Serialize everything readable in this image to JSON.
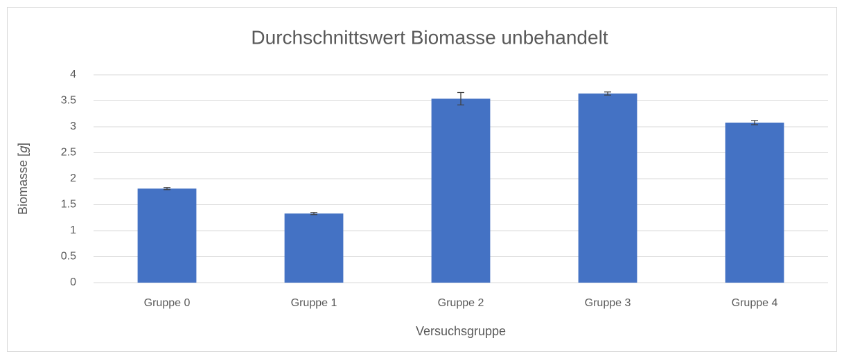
{
  "chart_data": {
    "type": "bar",
    "title": "Durchschnittswert Biomasse unbehandelt",
    "xlabel": "Versuchsgruppe",
    "ylabel": "Biomasse [𝑔]",
    "categories": [
      "Gruppe 0",
      "Gruppe 1",
      "Gruppe 2",
      "Gruppe 3",
      "Gruppe 4"
    ],
    "values": [
      1.81,
      1.33,
      3.54,
      3.64,
      3.08
    ],
    "errors": [
      0.02,
      0.02,
      0.12,
      0.03,
      0.04
    ],
    "color": "#4472c4",
    "ylim": [
      0,
      4
    ],
    "yticks": [
      0,
      0.5,
      1,
      1.5,
      2,
      2.5,
      3,
      3.5,
      4
    ],
    "grid": true
  }
}
